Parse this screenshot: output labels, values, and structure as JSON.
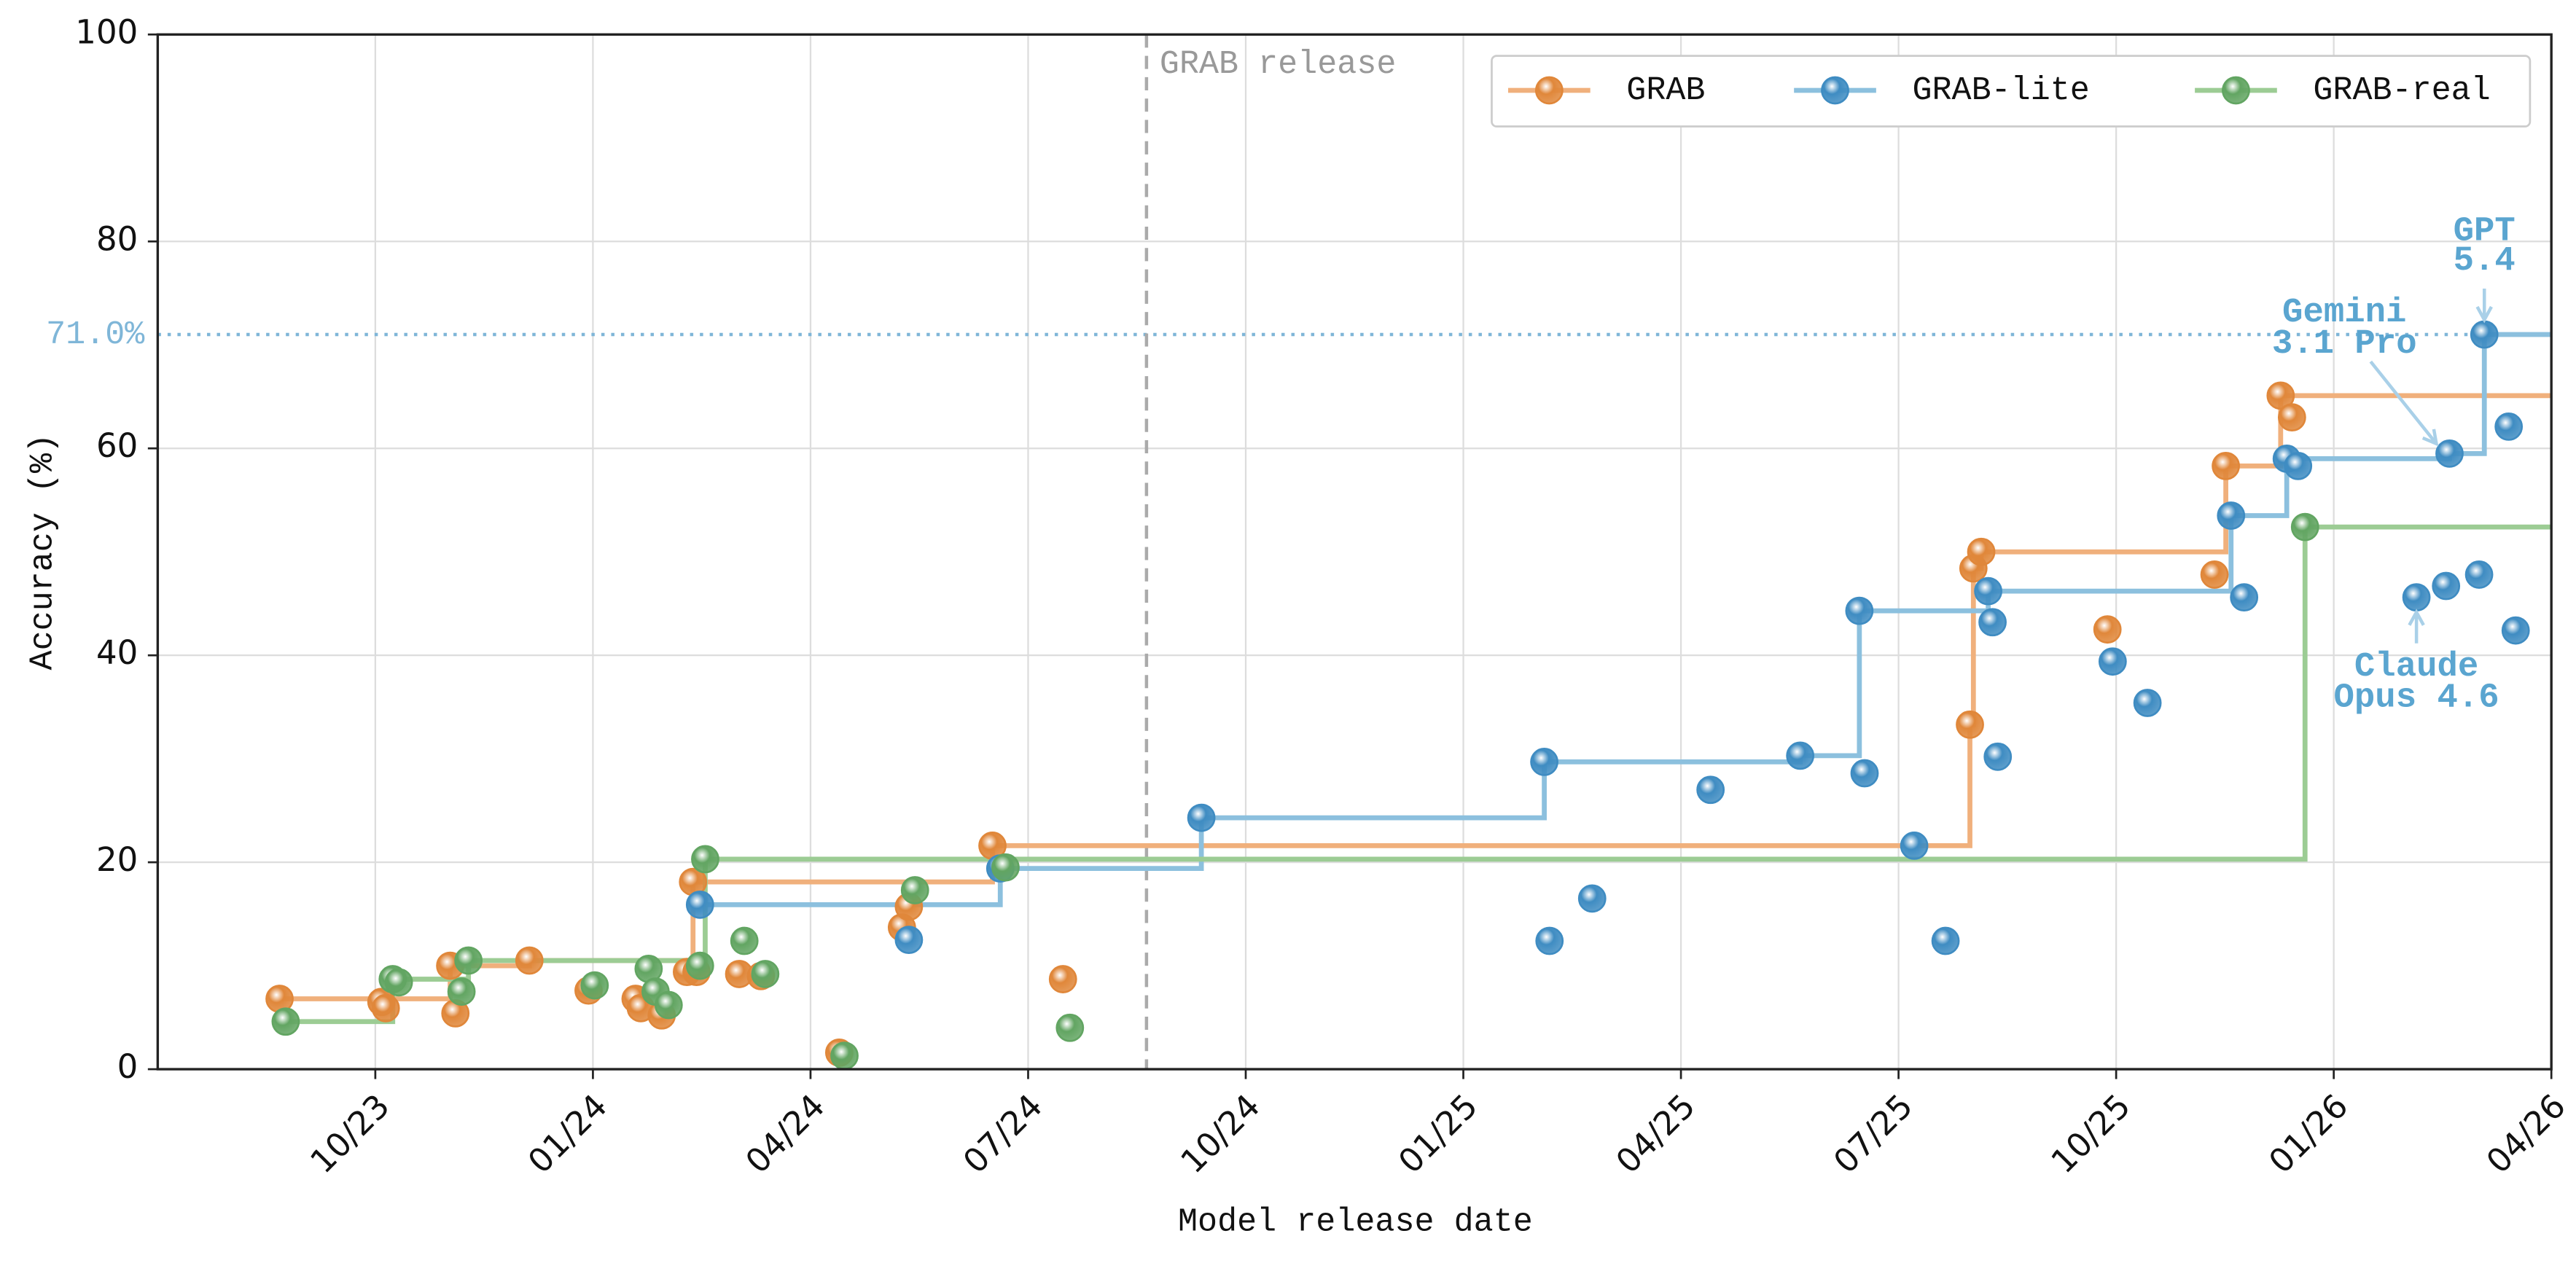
{
  "chart_data": {
    "type": "scatter-step",
    "x_label": "Model release date",
    "y_label": "Accuracy (%)",
    "xlim": [
      2023.5,
      2026.25
    ],
    "ylim": [
      0,
      100
    ],
    "xticks": [
      {
        "value": 2023.75,
        "label": "10/23"
      },
      {
        "value": 2024.0,
        "label": "01/24"
      },
      {
        "value": 2024.25,
        "label": "04/24"
      },
      {
        "value": 2024.5,
        "label": "07/24"
      },
      {
        "value": 2024.75,
        "label": "10/24"
      },
      {
        "value": 2025.0,
        "label": "01/25"
      },
      {
        "value": 2025.25,
        "label": "04/25"
      },
      {
        "value": 2025.5,
        "label": "07/25"
      },
      {
        "value": 2025.75,
        "label": "10/25"
      },
      {
        "value": 2026.0,
        "label": "01/26"
      },
      {
        "value": 2026.25,
        "label": "04/26"
      }
    ],
    "yticks": [
      0,
      20,
      40,
      60,
      80,
      100
    ],
    "grid": true,
    "legend": "upper right",
    "series": [
      {
        "name": "GRAB",
        "color": "#e0873a",
        "line_color": "#f0b07c",
        "x": [
          2023.64,
          2023.757,
          2023.762,
          2023.836,
          2023.842,
          2023.927,
          2023.995,
          2024.049,
          2024.055,
          2024.079,
          2024.108,
          2024.115,
          2024.119,
          2024.168,
          2024.193,
          2024.283,
          2024.355,
          2024.363,
          2024.459,
          2024.54,
          2025.582,
          2025.586,
          2025.595,
          2025.74,
          2025.863,
          2025.876,
          2025.939,
          2025.952
        ],
        "values": [
          6.8,
          6.5,
          5.9,
          10.0,
          5.4,
          10.5,
          7.6,
          6.8,
          5.9,
          5.2,
          9.4,
          18.1,
          9.4,
          9.2,
          9.0,
          1.6,
          13.7,
          15.7,
          21.6,
          8.7,
          33.3,
          48.4,
          50.0,
          42.5,
          47.8,
          58.3,
          65.1,
          63.0
        ]
      },
      {
        "name": "GRAB-lite",
        "color": "#3f8cc2",
        "line_color": "#8cc0de",
        "x": [
          2024.123,
          2024.363,
          2024.468,
          2024.699,
          2025.093,
          2025.099,
          2025.148,
          2025.284,
          2025.387,
          2025.455,
          2025.461,
          2025.518,
          2025.554,
          2025.603,
          2025.608,
          2025.614,
          2025.746,
          2025.786,
          2025.882,
          2025.897,
          2025.946,
          2025.959,
          2026.095,
          2026.129,
          2026.133,
          2026.167,
          2026.173,
          2026.201,
          2026.209
        ],
        "values": [
          15.9,
          12.5,
          19.4,
          24.3,
          29.7,
          12.4,
          16.5,
          27.0,
          30.3,
          44.3,
          28.6,
          21.6,
          12.4,
          46.2,
          43.2,
          30.2,
          39.4,
          35.4,
          53.5,
          45.6,
          59.0,
          58.3,
          45.6,
          46.7,
          59.5,
          47.8,
          71.0,
          62.1,
          42.4
        ]
      },
      {
        "name": "GRAB-real",
        "color": "#62a562",
        "line_color": "#9ccc94",
        "x": [
          2023.647,
          2023.77,
          2023.777,
          2023.849,
          2023.857,
          2024.002,
          2024.064,
          2024.072,
          2024.087,
          2024.123,
          2024.129,
          2024.174,
          2024.198,
          2024.289,
          2024.37,
          2024.474,
          2024.548,
          2025.967
        ],
        "values": [
          4.6,
          8.7,
          8.4,
          7.5,
          10.5,
          8.1,
          9.7,
          7.5,
          6.2,
          10.0,
          20.3,
          12.4,
          9.2,
          1.3,
          17.3,
          19.5,
          4.0,
          52.4
        ]
      }
    ],
    "reference_line": {
      "value": 71.0,
      "label": "71.0%",
      "color": "#7fb6d8"
    },
    "release_line": {
      "x": 2024.636,
      "label": "GRAB release"
    },
    "annotations": [
      {
        "text": [
          "GPT",
          "5.4"
        ]
      },
      {
        "text": [
          "Gemini",
          "3.1 Pro"
        ]
      },
      {
        "text": [
          "Claude",
          "Opus 4.6"
        ]
      }
    ]
  }
}
